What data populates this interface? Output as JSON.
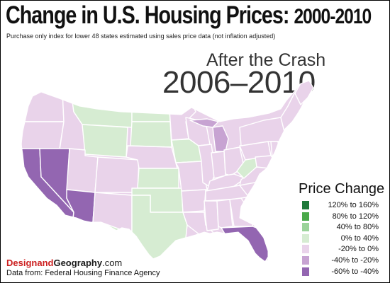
{
  "header": {
    "title": "Change in U.S. Housing Prices:",
    "title_years": "2000-2010",
    "subtitle": "Purchase only index for lower 48 states estimated using sales price data (not inflation adjusted)"
  },
  "period": {
    "label": "After the Crash",
    "years": "2006–2010"
  },
  "legend": {
    "title": "Price Change",
    "items": [
      {
        "label": "120% to 160%",
        "color": "#1e7a3a"
      },
      {
        "label": "80% to 120%",
        "color": "#4aa94a"
      },
      {
        "label": "40% to 80%",
        "color": "#9bd39a"
      },
      {
        "label": "0% to 40%",
        "color": "#d6ecd2"
      },
      {
        "label": "-20% to 0%",
        "color": "#e9d3ea"
      },
      {
        "label": "-40% to -20%",
        "color": "#c7a3d2"
      },
      {
        "label": "-60% to -40%",
        "color": "#9366b1"
      }
    ]
  },
  "colors": {
    "green_light": "#d6ecd2",
    "purple_light": "#e9d3ea",
    "purple_mid": "#c7a3d2",
    "purple_dark": "#9366b1",
    "border": "#ffffff"
  },
  "footer": {
    "brand_part1": "Design",
    "brand_part2": "and",
    "brand_part3": "Geography",
    "brand_suffix": ".com",
    "source": "Data from:  Federal Housing Finance Agency"
  }
}
